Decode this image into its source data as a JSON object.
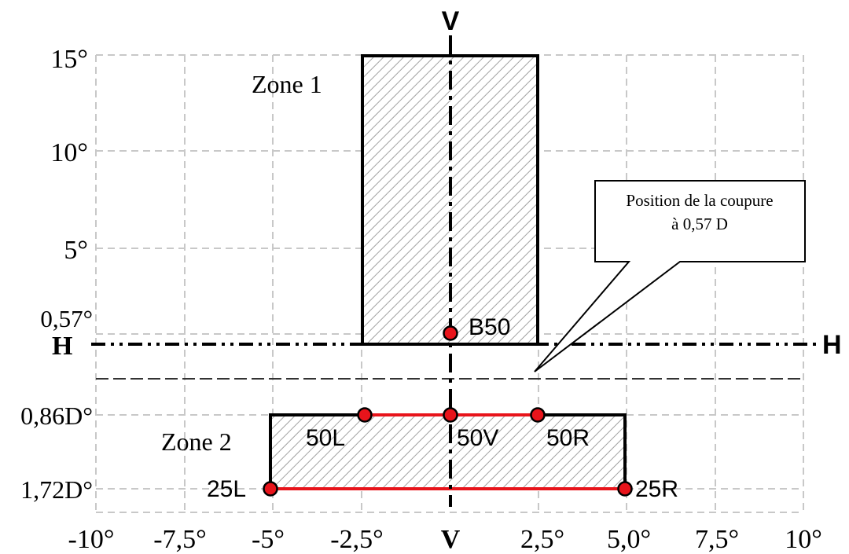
{
  "x_ticks": [
    "-10°",
    "-7,5°",
    "-5°",
    "-2,5°",
    "V",
    "2,5°",
    "5,0°",
    "7,5°",
    "10°"
  ],
  "y_ticks": {
    "t15": "15°",
    "t10": "10°",
    "t5": "5°",
    "t057": "0,57°",
    "H": "H",
    "t086": "0,86D°",
    "t172": "1,72D°"
  },
  "axis_letters": {
    "v_top": "V",
    "h_right": "H"
  },
  "zones": {
    "zone1": "Zone 1",
    "zone2": "Zone 2"
  },
  "points": {
    "B50": "B50",
    "50L": "50L",
    "50V": "50V",
    "50R": "50R",
    "25L": "25L",
    "25R": "25R"
  },
  "callout": {
    "line1": "Position de la coupure",
    "line2": "à 0,57 D"
  },
  "colors": {
    "grid": "#c8c8c8",
    "points": "#e8141b",
    "red_line": "#e8141b",
    "hatch": "#8a8a8a"
  }
}
